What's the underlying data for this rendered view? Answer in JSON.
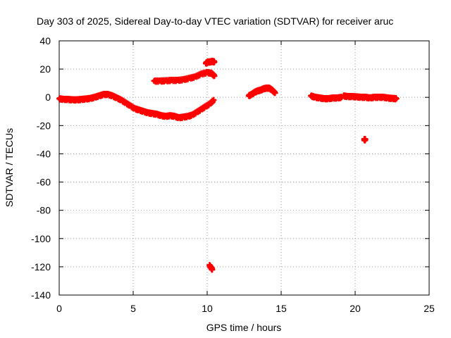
{
  "chart_data": {
    "type": "scatter",
    "title": "Day 303 of 2025, Sidereal Day-to-day VTEC variation (SDTVAR) for receiver aruc",
    "xlabel": "GPS time / hours",
    "ylabel": "SDTVAR / TECUs",
    "xlim": [
      0,
      25
    ],
    "ylim": [
      -140,
      40
    ],
    "xticks": [
      0,
      5,
      10,
      15,
      20,
      25
    ],
    "yticks": [
      -140,
      -120,
      -100,
      -80,
      -60,
      -40,
      -20,
      0,
      20,
      40
    ],
    "grid": true,
    "marker_color": "#ff0000",
    "series": [
      {
        "name": "main-trace",
        "x": [
          0.0,
          0.3,
          0.6,
          0.9,
          1.2,
          1.5,
          1.8,
          2.1,
          2.4,
          2.7,
          3.0,
          3.3,
          3.6,
          3.9,
          4.2,
          4.5,
          4.8,
          5.1,
          5.4,
          5.7,
          6.0,
          6.3,
          6.6,
          6.9,
          7.2,
          7.5,
          7.8,
          8.1,
          8.4,
          8.7,
          9.0,
          9.3,
          9.6,
          9.9,
          10.2,
          10.45
        ],
        "y": [
          -1,
          -1.5,
          -1.5,
          -1.8,
          -1.8,
          -1.5,
          -1.2,
          -0.8,
          0,
          1,
          2,
          2,
          1,
          -0.5,
          -2,
          -4,
          -6,
          -8,
          -9,
          -10,
          -11,
          -11.5,
          -12,
          -13,
          -13.5,
          -13,
          -13.5,
          -14.5,
          -14,
          -13.5,
          -12.5,
          -10.5,
          -8.5,
          -6.5,
          -4.5,
          -2
        ]
      },
      {
        "name": "upper-arc",
        "x": [
          6.4,
          6.8,
          7.2,
          7.6,
          8.0,
          8.4,
          8.8,
          9.2,
          9.6,
          10.0,
          10.3,
          10.5
        ],
        "y": [
          11.5,
          11.5,
          11.7,
          12,
          12,
          12.5,
          13.5,
          14.5,
          16.5,
          17.5,
          17,
          15
        ]
      },
      {
        "name": "upper-short",
        "x": [
          9.9,
          10.05,
          10.2,
          10.35,
          10.5
        ],
        "y": [
          24,
          25,
          25,
          25.5,
          25
        ]
      },
      {
        "name": "outlier-low",
        "x": [
          10.15,
          10.25,
          10.35
        ],
        "y": [
          -119,
          -120.5,
          -122
        ]
      },
      {
        "name": "mid-arc",
        "x": [
          12.8,
          13.0,
          13.2,
          13.4,
          13.6,
          13.8,
          14.0,
          14.2,
          14.4,
          14.6
        ],
        "y": [
          1,
          2,
          3.5,
          4.5,
          5,
          6,
          6.5,
          6.5,
          5,
          3
        ]
      },
      {
        "name": "right-arc-1",
        "x": [
          17.0,
          17.3,
          17.6,
          17.9,
          18.2,
          18.5,
          18.8,
          19.1
        ],
        "y": [
          1,
          0,
          -0.5,
          -1,
          -1,
          -0.5,
          -0.5,
          0
        ]
      },
      {
        "name": "right-arc-2",
        "x": [
          19.2,
          19.5,
          19.8,
          20.1,
          20.4,
          20.7,
          21.0,
          21.3,
          21.6,
          21.9,
          22.2,
          22.5,
          22.8
        ],
        "y": [
          1,
          0.5,
          0.5,
          0.3,
          0,
          0,
          -0.5,
          0,
          0,
          0,
          -0.5,
          -0.8,
          -1
        ]
      },
      {
        "name": "outlier-right",
        "x": [
          20.6,
          20.7
        ],
        "y": [
          -30,
          -30
        ]
      }
    ]
  }
}
